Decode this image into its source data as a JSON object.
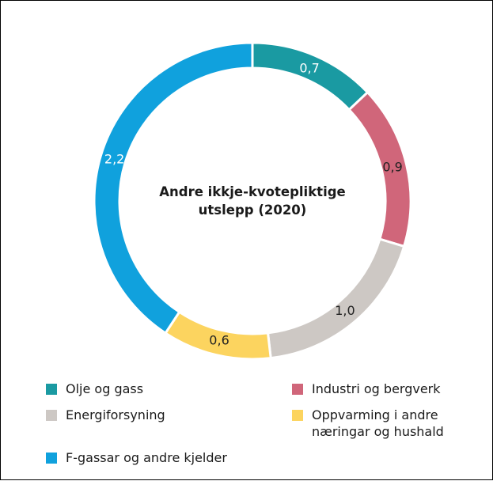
{
  "chart_data": {
    "type": "donut",
    "title": "Andre ikkje-kvotepliktige utslepp (2020)",
    "categories": [
      "Olje og gass",
      "Industri og bergverk",
      "Energiforsyning",
      "Oppvarming i andre næringar og hushald",
      "F-gassar og andre kjelder"
    ],
    "values": [
      0.7,
      0.9,
      1.0,
      0.6,
      2.2
    ],
    "value_labels": [
      "0,7",
      "0,9",
      "1,0",
      "0,6",
      "2,2"
    ],
    "colors": [
      "#1a9aa2",
      "#d0667a",
      "#cdc8c4",
      "#fcd45f",
      "#10a1dd"
    ],
    "legend": "bottom"
  }
}
